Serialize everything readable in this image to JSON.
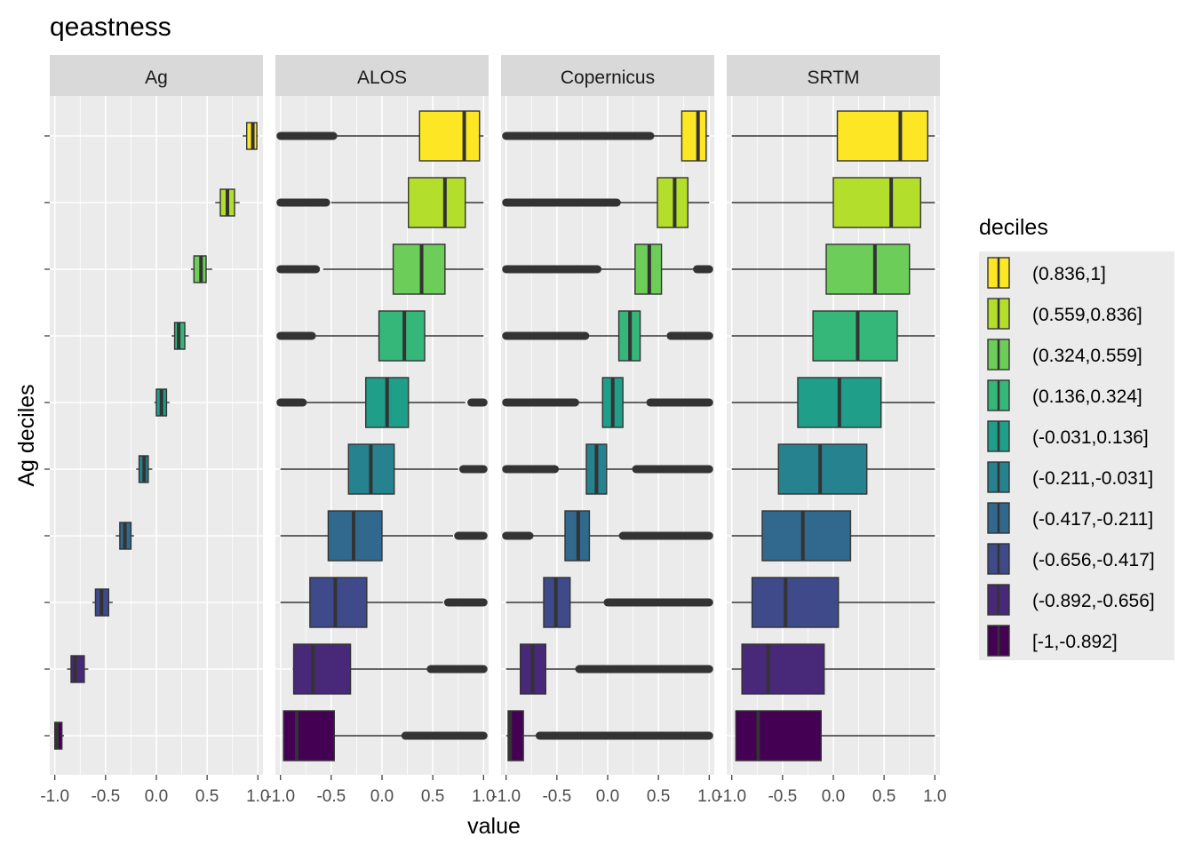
{
  "chart_data": {
    "type": "boxplot",
    "title": "qeastness",
    "xlabel": "value",
    "ylabel": "Ag deciles",
    "xlim": [
      -1.05,
      1.05
    ],
    "x_ticks": [
      -1.0,
      -0.5,
      0.0,
      0.5,
      1.0
    ],
    "x_tick_labels": [
      "-1.0",
      "-0.5",
      "0.0",
      "0.5",
      "1.0"
    ],
    "facets": [
      "Ag",
      "ALOS",
      "Copernicus",
      "SRTM"
    ],
    "legend": {
      "title": "deciles",
      "position": "right",
      "labels": [
        "(0.836,1]",
        "(0.559,0.836]",
        "(0.324,0.559]",
        "(0.136,0.324]",
        "(-0.031,0.136]",
        "(-0.211,-0.031]",
        "(-0.417,-0.211]",
        "(-0.656,-0.417]",
        "(-0.892,-0.656]",
        "[-1,-0.892]"
      ],
      "colors": [
        "#FDE725",
        "#B4DE2C",
        "#6DCD59",
        "#35B779",
        "#1F9E89",
        "#26828E",
        "#31688E",
        "#3E4A89",
        "#482878",
        "#440154"
      ]
    },
    "series": [
      {
        "name": "Ag",
        "boxes": [
          {
            "lw": 0.85,
            "q1": 0.89,
            "med": 0.95,
            "q3": 0.99,
            "uw": 1.0,
            "outliers": []
          },
          {
            "lw": 0.58,
            "q1": 0.63,
            "med": 0.7,
            "q3": 0.77,
            "uw": 0.82,
            "outliers": []
          },
          {
            "lw": 0.34,
            "q1": 0.37,
            "med": 0.44,
            "q3": 0.49,
            "uw": 0.55,
            "outliers": []
          },
          {
            "lw": 0.15,
            "q1": 0.18,
            "med": 0.22,
            "q3": 0.28,
            "uw": 0.32,
            "outliers": []
          },
          {
            "lw": -0.02,
            "q1": 0.0,
            "med": 0.05,
            "q3": 0.1,
            "uw": 0.13,
            "outliers": []
          },
          {
            "lw": -0.2,
            "q1": -0.17,
            "med": -0.12,
            "q3": -0.08,
            "uw": -0.04,
            "outliers": []
          },
          {
            "lw": -0.4,
            "q1": -0.36,
            "med": -0.31,
            "q3": -0.25,
            "uw": -0.22,
            "outliers": []
          },
          {
            "lw": -0.63,
            "q1": -0.6,
            "med": -0.54,
            "q3": -0.47,
            "uw": -0.43,
            "outliers": []
          },
          {
            "lw": -0.88,
            "q1": -0.84,
            "med": -0.8,
            "q3": -0.71,
            "uw": -0.67,
            "outliers": []
          },
          {
            "lw": -1.0,
            "q1": -1.0,
            "med": -0.98,
            "q3": -0.93,
            "uw": -0.91,
            "outliers": []
          }
        ]
      },
      {
        "name": "ALOS",
        "boxes": [
          {
            "lw": -0.45,
            "q1": 0.37,
            "med": 0.81,
            "q3": 0.96,
            "uw": 1.0,
            "outliers": [
              [
                -1.0,
                -0.48
              ]
            ]
          },
          {
            "lw": -0.5,
            "q1": 0.26,
            "med": 0.62,
            "q3": 0.82,
            "uw": 1.0,
            "outliers": [
              [
                -1.0,
                -0.55
              ]
            ]
          },
          {
            "lw": -0.58,
            "q1": 0.11,
            "med": 0.39,
            "q3": 0.62,
            "uw": 1.0,
            "outliers": [
              [
                -1.0,
                -0.65
              ]
            ]
          },
          {
            "lw": -0.65,
            "q1": -0.03,
            "med": 0.22,
            "q3": 0.42,
            "uw": 1.0,
            "outliers": [
              [
                -1.0,
                -0.69
              ]
            ]
          },
          {
            "lw": -0.78,
            "q1": -0.16,
            "med": 0.05,
            "q3": 0.26,
            "uw": 0.82,
            "outliers": [
              [
                -1.0,
                -0.78
              ],
              [
                0.88,
                1.0
              ]
            ]
          },
          {
            "lw": -1.0,
            "q1": -0.33,
            "med": -0.11,
            "q3": 0.12,
            "uw": 0.75,
            "outliers": [
              [
                0.8,
                1.0
              ]
            ]
          },
          {
            "lw": -1.0,
            "q1": -0.53,
            "med": -0.28,
            "q3": 0.0,
            "uw": 0.7,
            "outliers": [
              [
                0.75,
                1.0
              ]
            ]
          },
          {
            "lw": -1.0,
            "q1": -0.71,
            "med": -0.46,
            "q3": -0.15,
            "uw": 0.6,
            "outliers": [
              [
                0.65,
                1.0
              ]
            ]
          },
          {
            "lw": -0.88,
            "q1": -0.87,
            "med": -0.68,
            "q3": -0.31,
            "uw": 0.45,
            "outliers": [
              [
                0.48,
                1.0
              ]
            ]
          },
          {
            "lw": -0.97,
            "q1": -0.97,
            "med": -0.84,
            "q3": -0.47,
            "uw": 0.2,
            "outliers": [
              [
                0.23,
                1.0
              ]
            ]
          }
        ]
      },
      {
        "name": "Copernicus",
        "boxes": [
          {
            "lw": 0.4,
            "q1": 0.73,
            "med": 0.89,
            "q3": 0.97,
            "uw": 1.0,
            "outliers": [
              [
                -1.0,
                0.42
              ]
            ]
          },
          {
            "lw": 0.05,
            "q1": 0.49,
            "med": 0.66,
            "q3": 0.79,
            "uw": 1.0,
            "outliers": [
              [
                -1.0,
                0.09
              ]
            ]
          },
          {
            "lw": -0.15,
            "q1": 0.27,
            "med": 0.41,
            "q3": 0.53,
            "uw": 0.85,
            "outliers": [
              [
                -1.0,
                -0.1
              ],
              [
                0.88,
                1.0
              ]
            ]
          },
          {
            "lw": -0.25,
            "q1": 0.11,
            "med": 0.22,
            "q3": 0.32,
            "uw": 0.58,
            "outliers": [
              [
                -1.0,
                -0.22
              ],
              [
                0.62,
                1.0
              ]
            ]
          },
          {
            "lw": -0.35,
            "q1": -0.05,
            "med": 0.05,
            "q3": 0.15,
            "uw": 0.38,
            "outliers": [
              [
                -1.0,
                -0.32
              ],
              [
                0.42,
                1.0
              ]
            ]
          },
          {
            "lw": -0.5,
            "q1": -0.21,
            "med": -0.11,
            "q3": -0.01,
            "uw": 0.25,
            "outliers": [
              [
                -1.0,
                -0.52
              ],
              [
                0.28,
                1.0
              ]
            ]
          },
          {
            "lw": -0.75,
            "q1": -0.42,
            "med": -0.29,
            "q3": -0.18,
            "uw": 0.12,
            "outliers": [
              [
                -1.0,
                -0.77
              ],
              [
                0.15,
                1.0
              ]
            ]
          },
          {
            "lw": -1.0,
            "q1": -0.63,
            "med": -0.51,
            "q3": -0.37,
            "uw": 0.0,
            "outliers": [
              [
                0.0,
                1.0
              ]
            ]
          },
          {
            "lw": -1.0,
            "q1": -0.86,
            "med": -0.74,
            "q3": -0.61,
            "uw": -0.3,
            "outliers": [
              [
                -0.28,
                1.0
              ]
            ]
          },
          {
            "lw": -1.0,
            "q1": -0.98,
            "med": -0.96,
            "q3": -0.83,
            "uw": -0.7,
            "outliers": [
              [
                -0.67,
                1.0
              ]
            ]
          }
        ]
      },
      {
        "name": "SRTM",
        "boxes": [
          {
            "lw": -1.0,
            "q1": 0.04,
            "med": 0.66,
            "q3": 0.93,
            "uw": 1.0,
            "outliers": []
          },
          {
            "lw": -1.0,
            "q1": 0.0,
            "med": 0.57,
            "q3": 0.86,
            "uw": 1.0,
            "outliers": []
          },
          {
            "lw": -1.0,
            "q1": -0.07,
            "med": 0.41,
            "q3": 0.75,
            "uw": 1.0,
            "outliers": []
          },
          {
            "lw": -1.0,
            "q1": -0.2,
            "med": 0.24,
            "q3": 0.63,
            "uw": 1.0,
            "outliers": []
          },
          {
            "lw": -1.0,
            "q1": -0.35,
            "med": 0.06,
            "q3": 0.47,
            "uw": 1.0,
            "outliers": []
          },
          {
            "lw": -1.0,
            "q1": -0.54,
            "med": -0.13,
            "q3": 0.33,
            "uw": 1.0,
            "outliers": []
          },
          {
            "lw": -1.0,
            "q1": -0.7,
            "med": -0.3,
            "q3": 0.17,
            "uw": 1.0,
            "outliers": []
          },
          {
            "lw": -1.0,
            "q1": -0.8,
            "med": -0.47,
            "q3": 0.05,
            "uw": 1.0,
            "outliers": []
          },
          {
            "lw": -1.0,
            "q1": -0.9,
            "med": -0.64,
            "q3": -0.09,
            "uw": 1.0,
            "outliers": []
          },
          {
            "lw": -0.96,
            "q1": -0.96,
            "med": -0.74,
            "q3": -0.12,
            "uw": 1.0,
            "outliers": []
          }
        ]
      }
    ]
  }
}
